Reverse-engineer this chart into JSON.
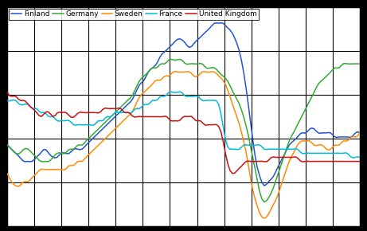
{
  "title": "",
  "xlabel": "",
  "ylabel": "",
  "figsize": [
    4.61,
    2.9
  ],
  "dpi": 100,
  "legend_labels": [
    "Finland",
    "Germany",
    "Sweden",
    "France",
    "United Kingdom"
  ],
  "colors": {
    "Finland": "#2255CC",
    "Germany": "#33AA33",
    "Sweden": "#FF8C00",
    "France": "#00BBDD",
    "United Kingdom": "#CC1111"
  },
  "background_color": "#000000",
  "plot_bg_color": "#ffffff",
  "linewidth": 1.1
}
